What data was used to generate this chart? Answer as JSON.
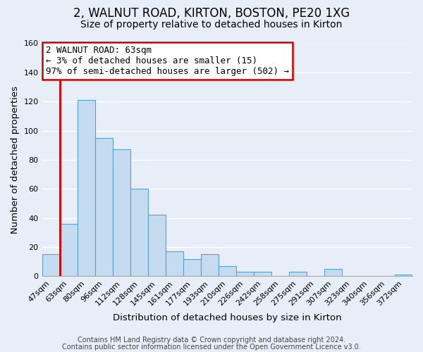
{
  "title": "2, WALNUT ROAD, KIRTON, BOSTON, PE20 1XG",
  "subtitle": "Size of property relative to detached houses in Kirton",
  "xlabel": "Distribution of detached houses by size in Kirton",
  "ylabel": "Number of detached properties",
  "bin_labels": [
    "47sqm",
    "63sqm",
    "80sqm",
    "96sqm",
    "112sqm",
    "128sqm",
    "145sqm",
    "161sqm",
    "177sqm",
    "193sqm",
    "210sqm",
    "226sqm",
    "242sqm",
    "258sqm",
    "275sqm",
    "291sqm",
    "307sqm",
    "323sqm",
    "340sqm",
    "356sqm",
    "372sqm"
  ],
  "bar_heights": [
    15,
    36,
    121,
    95,
    87,
    60,
    42,
    17,
    12,
    15,
    7,
    3,
    3,
    0,
    3,
    0,
    5,
    0,
    0,
    0,
    1
  ],
  "highlight_bar_index": 1,
  "bar_color": "#c5dcf0",
  "bar_edge_color": "#5a9fd4",
  "highlight_edge_color": "#cc0000",
  "ylim": [
    0,
    160
  ],
  "yticks": [
    0,
    20,
    40,
    60,
    80,
    100,
    120,
    140,
    160
  ],
  "annotation_title": "2 WALNUT ROAD: 63sqm",
  "annotation_line1": "← 3% of detached houses are smaller (15)",
  "annotation_line2": "97% of semi-detached houses are larger (502) →",
  "annotation_box_color": "#ffffff",
  "annotation_border_color": "#cc0000",
  "footer_line1": "Contains HM Land Registry data © Crown copyright and database right 2024.",
  "footer_line2": "Contains public sector information licensed under the Open Government Licence v3.0.",
  "background_color": "#e8eef8",
  "grid_color": "#ffffff",
  "title_fontsize": 12,
  "subtitle_fontsize": 10,
  "axis_label_fontsize": 9.5,
  "tick_fontsize": 8,
  "annotation_fontsize": 9,
  "footer_fontsize": 7
}
